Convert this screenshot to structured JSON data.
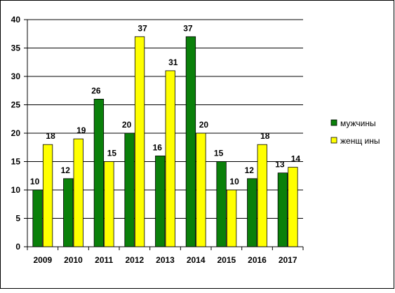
{
  "chart_data": {
    "type": "bar",
    "categories": [
      "2009",
      "2010",
      "2011",
      "2012",
      "2013",
      "2014",
      "2015",
      "2016",
      "2017"
    ],
    "series": [
      {
        "name": "мужчины",
        "color": "#0a800a",
        "values": [
          10,
          12,
          26,
          20,
          16,
          37,
          15,
          12,
          13
        ]
      },
      {
        "name": "женщ ины",
        "color": "#ffff00",
        "values": [
          18,
          19,
          15,
          37,
          31,
          20,
          10,
          18,
          14
        ]
      }
    ],
    "ylim": [
      0,
      40
    ],
    "yticks": [
      "0",
      "5",
      "10",
      "15",
      "20",
      "25",
      "30",
      "35",
      "40"
    ],
    "grid": true,
    "legend": "right",
    "data_labels": true
  }
}
